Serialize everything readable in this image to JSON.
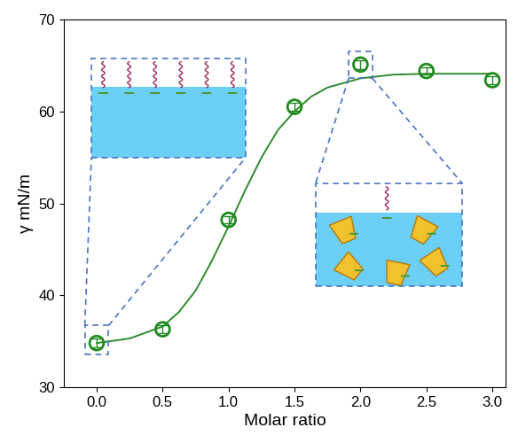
{
  "chart_data": {
    "type": "scatter",
    "x_label": "Molar ratio",
    "y_label": "γ mN/m",
    "series": [
      {
        "type": "scatter",
        "color": "#1f8a1f",
        "marker": "o",
        "x": [
          0.0,
          0.5,
          1.0,
          1.5,
          2.0,
          2.5,
          3.0
        ],
        "values": [
          34.8,
          36.3,
          48.2,
          60.5,
          65.1,
          64.4,
          63.4
        ],
        "errors": [
          0.5,
          0.4,
          0.4,
          0.4,
          0.5,
          0.4,
          0.4
        ]
      },
      {
        "type": "line",
        "color": "#2e8b2e",
        "line_style": "solid",
        "x": [
          0.0,
          0.25,
          0.5,
          0.625,
          0.75,
          0.875,
          1.0,
          1.125,
          1.25,
          1.375,
          1.5,
          1.625,
          1.75,
          2.0,
          2.25,
          2.5,
          2.75,
          3.0
        ],
        "values": [
          34.8,
          35.3,
          36.6,
          38.2,
          40.5,
          43.8,
          47.5,
          51.4,
          55.0,
          58.0,
          60.0,
          61.6,
          62.6,
          63.6,
          64.0,
          64.1,
          64.1,
          64.1
        ]
      }
    ],
    "xlim": [
      -0.25,
      3.1
    ],
    "ylim": [
      30,
      70
    ],
    "xticks": [
      {
        "value": 0.0,
        "label": "0.0"
      },
      {
        "value": 0.5,
        "label": "0.5"
      },
      {
        "value": 1.0,
        "label": "1.0"
      },
      {
        "value": 1.5,
        "label": "1.5"
      },
      {
        "value": 2.0,
        "label": "2.0"
      },
      {
        "value": 2.5,
        "label": "2.5"
      },
      {
        "value": 3.0,
        "label": "3.0"
      }
    ],
    "yticks": [
      30,
      40,
      50,
      60,
      70
    ],
    "grid": false
  }
}
